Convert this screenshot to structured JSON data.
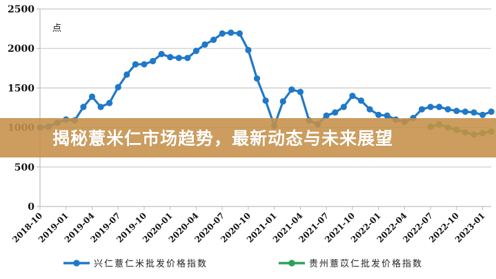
{
  "banner": {
    "title": "揭秘薏米仁市场趋势，最新动态与未来展望",
    "background": "#C58F48",
    "text_color": "#FFFFFF"
  },
  "chart_data": {
    "type": "line",
    "title": "",
    "unit_label": "点",
    "xlabel": "",
    "ylabel": "点",
    "ylim": [
      0,
      2500
    ],
    "yticks": [
      0,
      500,
      1000,
      1500,
      2000,
      2500
    ],
    "grid": true,
    "legend_position": "bottom",
    "xtick_labels": [
      "2018-10",
      "2019-01",
      "2019-04",
      "2019-07",
      "2019-10",
      "2020-01",
      "2020-04",
      "2020-07",
      "2020-10",
      "2021-01",
      "2021-04",
      "2021-07",
      "2021-10",
      "2022-01",
      "2022-04",
      "2022-07",
      "2022-10",
      "2023-01"
    ],
    "x": [
      "2018-10",
      "2018-11",
      "2018-12",
      "2019-01",
      "2019-02",
      "2019-03",
      "2019-04",
      "2019-05",
      "2019-06",
      "2019-07",
      "2019-08",
      "2019-09",
      "2019-10",
      "2019-11",
      "2019-12",
      "2020-01",
      "2020-02",
      "2020-03",
      "2020-04",
      "2020-05",
      "2020-06",
      "2020-07",
      "2020-08",
      "2020-09",
      "2020-10",
      "2020-11",
      "2020-12",
      "2021-01",
      "2021-02",
      "2021-03",
      "2021-04",
      "2021-05",
      "2021-06",
      "2021-07",
      "2021-08",
      "2021-09",
      "2021-10",
      "2021-11",
      "2021-12",
      "2022-01",
      "2022-02",
      "2022-03",
      "2022-04",
      "2022-05",
      "2022-06",
      "2022-07",
      "2022-08",
      "2022-09",
      "2022-10",
      "2022-11",
      "2022-12",
      "2023-01",
      "2023-02"
    ],
    "series": [
      {
        "name": "兴仁薏仁米批发价格指数",
        "color": "#1F78C8",
        "values": [
          1000,
          1010,
          1060,
          1100,
          1090,
          1260,
          1390,
          1260,
          1310,
          1510,
          1670,
          1800,
          1800,
          1840,
          1930,
          1890,
          1880,
          1880,
          1970,
          2050,
          2110,
          2190,
          2200,
          2190,
          1980,
          1620,
          1340,
          1020,
          1330,
          1480,
          1450,
          1090,
          1040,
          1150,
          1190,
          1260,
          1400,
          1340,
          1230,
          1160,
          1150,
          1100,
          1070,
          1120,
          1230,
          1260,
          1260,
          1230,
          1210,
          1200,
          1190,
          1160,
          1200
        ]
      },
      {
        "name": "贵州薏苡仁批发价格指数",
        "color": "#2CA05A",
        "values": [
          1000,
          1010,
          1060,
          1100,
          1090,
          null,
          null,
          null,
          null,
          null,
          null,
          null,
          null,
          null,
          null,
          null,
          null,
          null,
          null,
          null,
          null,
          null,
          null,
          null,
          null,
          null,
          null,
          null,
          null,
          null,
          null,
          null,
          null,
          null,
          null,
          null,
          null,
          null,
          null,
          null,
          null,
          null,
          null,
          null,
          null,
          1010,
          1040,
          1000,
          970,
          940,
          910,
          930,
          950
        ]
      }
    ]
  },
  "legend": {
    "items": [
      {
        "label": "兴仁薏仁米批发价格指数",
        "color": "#1F78C8"
      },
      {
        "label": "贵州薏苡仁批发价格指数",
        "color": "#2CA05A"
      }
    ]
  }
}
